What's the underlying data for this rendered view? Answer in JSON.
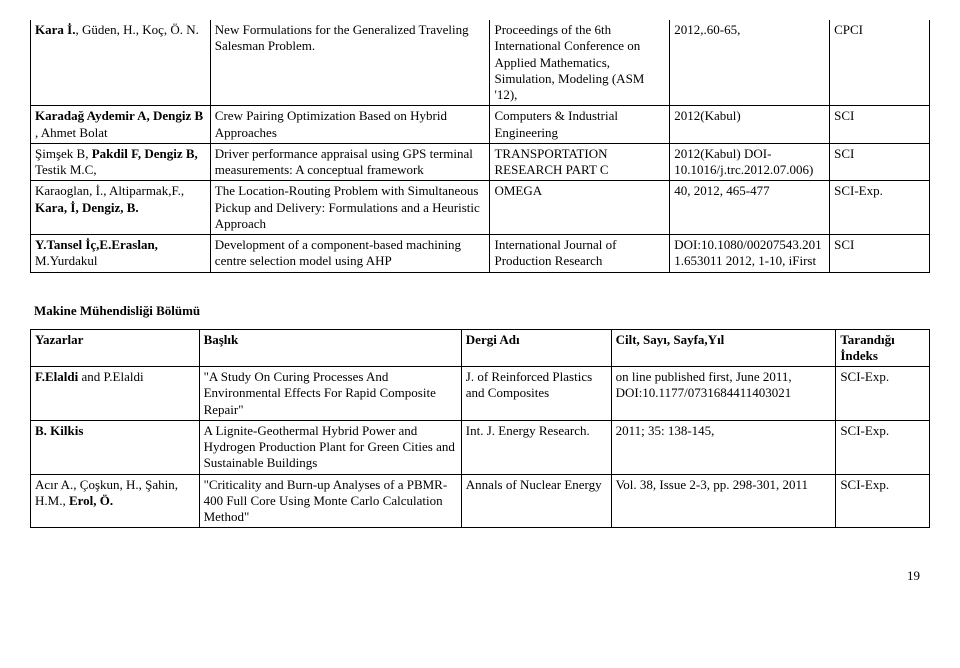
{
  "table1": {
    "rows": [
      {
        "authors": "Kara İ., Güden, H., Koç, Ö. N.",
        "authors_bold": "Kara İ.",
        "authors_rest": ", Güden, H., Koç, Ö. N.",
        "title": "New Formulations for the Generalized Traveling Salesman Problem.",
        "venue": "Proceedings of the 6th International Conference on Applied Mathematics, Simulation, Modeling (ASM '12),",
        "cite": "2012,.60-65,",
        "index": "CPCI"
      },
      {
        "authors_bold": "Karadağ Aydemir A, Dengiz B",
        "authors_rest": " , Ahmet Bolat",
        "title": "Crew Pairing Optimization Based on Hybrid Approaches",
        "venue": "Computers & Industrial Engineering",
        "cite": "2012(Kabul)",
        "index": "SCI"
      },
      {
        "authors_plain_pre": "Şimşek B, ",
        "authors_bold": "Pakdil F, Dengiz B,",
        "authors_rest": " Testik M.C,",
        "title": "Driver performance appraisal using GPS terminal measurements: A conceptual framework",
        "venue": "TRANSPORTATION RESEARCH PART C",
        "cite": "2012(Kabul) DOI- 10.1016/j.trc.2012.07.006)",
        "index": "SCI"
      },
      {
        "authors_plain_pre": "Karaoglan, İ., Altiparmak,F., ",
        "authors_bold": "Kara, İ,   Dengiz, B.",
        "title": "The Location-Routing Problem with Simultaneous Pickup and Delivery: Formulations and a Heuristic Approach",
        "venue": "OMEGA",
        "cite": "40,  2012, 465-477",
        "index": "SCI-Exp."
      },
      {
        "authors_bold": "Y.Tansel İç,E.Eraslan,",
        "authors_rest": " M.Yurdakul",
        "title": "Development of a component-based machining centre selection model using AHP",
        "venue": "International Journal of Production Research",
        "cite": "DOI:10.1080/00207543.2011.653011 2012, 1-10, iFirst",
        "index": "SCI"
      }
    ]
  },
  "section_title": "Makine Mühendisliği Bölümü",
  "table2": {
    "headers": {
      "c1": "Yazarlar",
      "c2": "Başlık",
      "c3": "Dergi Adı",
      "c4": "Cilt, Sayı, Sayfa,Yıl",
      "c5": "Tarandığı İndeks"
    },
    "rows": [
      {
        "authors_bold": "F.Elaldi",
        "authors_rest": " and P.Elaldi",
        "title": "\"A Study On Curing Processes And Environmental Effects For Rapid Composite Repair\"",
        "venue": "J. of Reinforced Plastics and Composites",
        "cite": "on line published first, June 2011, DOI:10.1177/0731684411403021",
        "index": "SCI-Exp."
      },
      {
        "authors_bold": "B. Kilkis",
        "title": "A Lignite-Geothermal Hybrid Power and Hydrogen Production Plant for Green Cities and Sustainable Buildings",
        "venue": "Int. J. Energy Research.",
        "cite": "2011; 35: 138-145,",
        "index": "SCI-Exp."
      },
      {
        "authors_plain_pre": "Acır A., Çoşkun, H., Şahin, H.M., ",
        "authors_bold": "Erol, Ö.",
        "title": "\"Criticality and Burn-up Analyses of a PBMR-400 Full Core Using Monte Carlo Calculation Method\"",
        "venue": "Annals of Nuclear Energy",
        "cite": "Vol. 38, Issue 2-3, pp. 298-301, 2011",
        "index": "SCI-Exp."
      }
    ]
  },
  "page_number": "19"
}
